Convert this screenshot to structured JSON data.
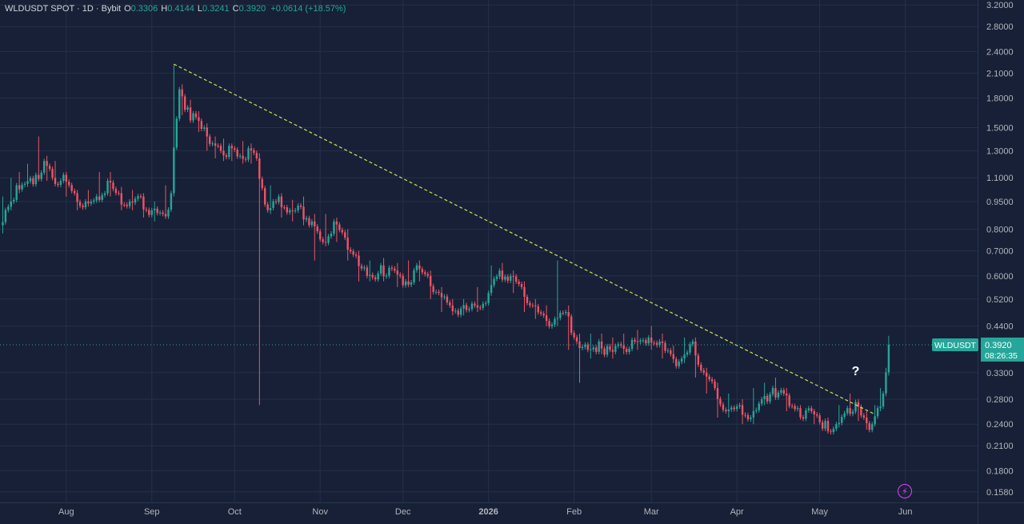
{
  "header": {
    "symbol": "WLDUSDT SPOT · 1D · Bybit",
    "o_label": "O",
    "o": "0.3306",
    "h_label": "H",
    "h": "0.4144",
    "l_label": "L",
    "l": "0.3241",
    "c_label": "C",
    "c": "0.3920",
    "change": "+0.0614 (+18.57%)"
  },
  "price_tag": {
    "symbol": "WLDUSDT",
    "price": "0.3920",
    "countdown": "08:26:35"
  },
  "annotation": "?",
  "colors": {
    "background": "#172036",
    "grid": "#243049",
    "up": "#26a69a",
    "down": "#ef5366",
    "trendline": "#d4e157",
    "axis_text": "#b2b5be",
    "tag_bg": "#26a69a"
  },
  "icons": {
    "bottom_right": "lightning-bolt-icon"
  },
  "chart_data": {
    "type": "candlestick",
    "scale": "log",
    "y_ticks": [
      "3.2000",
      "2.8000",
      "2.4000",
      "2.1000",
      "1.8000",
      "1.5000",
      "1.3000",
      "1.1000",
      "0.9500",
      "0.8000",
      "0.7000",
      "0.6000",
      "0.5200",
      "0.4400",
      "0.3300",
      "0.2800",
      "0.2400",
      "0.2100",
      "0.1800",
      "0.1580"
    ],
    "x_ticks": [
      "Aug",
      "Sep",
      "Oct",
      "Nov",
      "Dec",
      "2026",
      "Feb",
      "Mar",
      "Apr",
      "May",
      "Jun"
    ],
    "y_range": [
      0.148,
      3.3
    ],
    "trendline": [
      [
        "2025-09-09",
        2.22
      ],
      [
        "2026-05-21",
        0.255
      ]
    ],
    "current_price": 0.392,
    "ohlc_daily_approx": [
      [
        "2025-07-09",
        0.82,
        0.98,
        0.78,
        0.92
      ],
      [
        "2025-07-12",
        0.92,
        1.1,
        0.9,
        1.05
      ],
      [
        "2025-07-15",
        1.05,
        1.14,
        1.0,
        1.06
      ],
      [
        "2025-07-18",
        1.06,
        1.2,
        1.04,
        1.12
      ],
      [
        "2025-07-22",
        1.12,
        1.42,
        1.1,
        1.22
      ],
      [
        "2025-07-25",
        1.22,
        1.26,
        1.08,
        1.1
      ],
      [
        "2025-07-28",
        1.1,
        1.22,
        1.05,
        1.12
      ],
      [
        "2025-08-01",
        1.12,
        1.14,
        0.98,
        1.0
      ],
      [
        "2025-08-05",
        1.0,
        1.02,
        0.9,
        0.95
      ],
      [
        "2025-08-09",
        0.95,
        1.02,
        0.92,
        0.98
      ],
      [
        "2025-08-13",
        0.98,
        1.14,
        0.96,
        1.08
      ],
      [
        "2025-08-17",
        1.08,
        1.14,
        0.98,
        1.0
      ],
      [
        "2025-08-21",
        1.0,
        1.04,
        0.9,
        0.95
      ],
      [
        "2025-08-25",
        0.95,
        1.02,
        0.9,
        0.98
      ],
      [
        "2025-08-29",
        0.98,
        1.0,
        0.86,
        0.9
      ],
      [
        "2025-09-02",
        0.9,
        0.95,
        0.84,
        0.88
      ],
      [
        "2025-09-06",
        0.88,
        1.05,
        0.86,
        1.0
      ],
      [
        "2025-09-09",
        1.0,
        2.22,
        0.98,
        1.9
      ],
      [
        "2025-09-12",
        1.9,
        1.96,
        1.62,
        1.7
      ],
      [
        "2025-09-15",
        1.7,
        1.78,
        1.56,
        1.6
      ],
      [
        "2025-09-18",
        1.6,
        1.66,
        1.46,
        1.5
      ],
      [
        "2025-09-21",
        1.5,
        1.54,
        1.3,
        1.36
      ],
      [
        "2025-09-24",
        1.36,
        1.42,
        1.24,
        1.3
      ],
      [
        "2025-09-27",
        1.3,
        1.4,
        1.22,
        1.34
      ],
      [
        "2025-09-30",
        1.34,
        1.36,
        1.22,
        1.26
      ],
      [
        "2025-10-04",
        1.26,
        1.38,
        1.2,
        1.32
      ],
      [
        "2025-10-07",
        1.32,
        1.36,
        1.2,
        1.24
      ],
      [
        "2025-10-10",
        1.24,
        1.28,
        0.27,
        0.9
      ],
      [
        "2025-10-14",
        0.9,
        1.05,
        0.88,
        0.98
      ],
      [
        "2025-10-18",
        0.98,
        1.0,
        0.86,
        0.9
      ],
      [
        "2025-10-22",
        0.9,
        0.96,
        0.84,
        0.92
      ],
      [
        "2025-10-26",
        0.92,
        0.98,
        0.82,
        0.84
      ],
      [
        "2025-10-30",
        0.84,
        0.88,
        0.66,
        0.74
      ],
      [
        "2025-11-03",
        0.74,
        0.88,
        0.72,
        0.84
      ],
      [
        "2025-11-07",
        0.84,
        0.86,
        0.74,
        0.76
      ],
      [
        "2025-11-11",
        0.76,
        0.8,
        0.66,
        0.68
      ],
      [
        "2025-11-15",
        0.68,
        0.7,
        0.58,
        0.6
      ],
      [
        "2025-11-19",
        0.6,
        0.66,
        0.58,
        0.64
      ],
      [
        "2025-11-24",
        0.64,
        0.67,
        0.58,
        0.62
      ],
      [
        "2025-11-29",
        0.62,
        0.65,
        0.56,
        0.58
      ],
      [
        "2025-12-03",
        0.58,
        0.66,
        0.56,
        0.64
      ],
      [
        "2025-12-07",
        0.64,
        0.66,
        0.58,
        0.6
      ],
      [
        "2025-12-11",
        0.6,
        0.62,
        0.52,
        0.54
      ],
      [
        "2025-12-15",
        0.54,
        0.56,
        0.48,
        0.5
      ],
      [
        "2025-12-19",
        0.5,
        0.52,
        0.47,
        0.49
      ],
      [
        "2025-12-23",
        0.49,
        0.52,
        0.47,
        0.5
      ],
      [
        "2025-12-28",
        0.5,
        0.56,
        0.48,
        0.54
      ],
      [
        "2026-01-02",
        0.54,
        0.64,
        0.53,
        0.62
      ],
      [
        "2026-01-06",
        0.62,
        0.65,
        0.58,
        0.6
      ],
      [
        "2026-01-10",
        0.6,
        0.62,
        0.54,
        0.56
      ],
      [
        "2026-01-14",
        0.56,
        0.58,
        0.48,
        0.5
      ],
      [
        "2026-01-18",
        0.5,
        0.52,
        0.46,
        0.47
      ],
      [
        "2026-01-22",
        0.47,
        0.5,
        0.44,
        0.46
      ],
      [
        "2026-01-26",
        0.46,
        0.66,
        0.44,
        0.48
      ],
      [
        "2026-01-30",
        0.48,
        0.5,
        0.38,
        0.4
      ],
      [
        "2026-02-03",
        0.4,
        0.42,
        0.31,
        0.38
      ],
      [
        "2026-02-07",
        0.38,
        0.42,
        0.36,
        0.4
      ],
      [
        "2026-02-11",
        0.4,
        0.42,
        0.37,
        0.38
      ],
      [
        "2026-02-15",
        0.38,
        0.41,
        0.36,
        0.39
      ],
      [
        "2026-02-19",
        0.39,
        0.42,
        0.37,
        0.4
      ],
      [
        "2026-02-24",
        0.4,
        0.43,
        0.38,
        0.41
      ],
      [
        "2026-03-01",
        0.41,
        0.44,
        0.38,
        0.4
      ],
      [
        "2026-03-05",
        0.4,
        0.42,
        0.36,
        0.37
      ],
      [
        "2026-03-09",
        0.37,
        0.39,
        0.35,
        0.36
      ],
      [
        "2026-03-13",
        0.36,
        0.41,
        0.35,
        0.4
      ],
      [
        "2026-03-17",
        0.4,
        0.41,
        0.32,
        0.33
      ],
      [
        "2026-03-21",
        0.33,
        0.34,
        0.29,
        0.3
      ],
      [
        "2026-03-25",
        0.3,
        0.31,
        0.25,
        0.26
      ],
      [
        "2026-03-29",
        0.26,
        0.29,
        0.25,
        0.27
      ],
      [
        "2026-04-03",
        0.27,
        0.28,
        0.24,
        0.25
      ],
      [
        "2026-04-07",
        0.25,
        0.3,
        0.24,
        0.28
      ],
      [
        "2026-04-11",
        0.28,
        0.31,
        0.27,
        0.3
      ],
      [
        "2026-04-15",
        0.3,
        0.32,
        0.28,
        0.29
      ],
      [
        "2026-04-19",
        0.29,
        0.3,
        0.26,
        0.265
      ],
      [
        "2026-04-24",
        0.265,
        0.27,
        0.255,
        0.26
      ],
      [
        "2026-04-29",
        0.26,
        0.262,
        0.24,
        0.245
      ],
      [
        "2026-05-04",
        0.245,
        0.25,
        0.235,
        0.24
      ],
      [
        "2026-05-08",
        0.24,
        0.27,
        0.235,
        0.265
      ],
      [
        "2026-05-12",
        0.265,
        0.29,
        0.26,
        0.275
      ],
      [
        "2026-05-15",
        0.275,
        0.28,
        0.245,
        0.25
      ],
      [
        "2026-05-18",
        0.25,
        0.26,
        0.232,
        0.24
      ],
      [
        "2026-05-21",
        0.24,
        0.27,
        0.238,
        0.265
      ],
      [
        "2026-05-23",
        0.265,
        0.3,
        0.26,
        0.29
      ],
      [
        "2026-05-25",
        0.29,
        0.34,
        0.285,
        0.3306
      ],
      [
        "2026-05-26",
        0.3306,
        0.4144,
        0.3241,
        0.392
      ]
    ]
  }
}
